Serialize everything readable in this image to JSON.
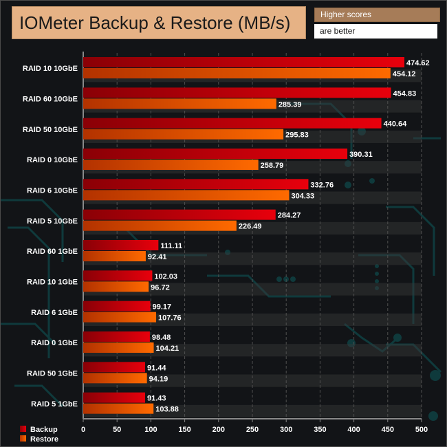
{
  "header": {
    "title": "IOMeter Backup & Restore (MB/s)",
    "note_line1": "Higher scores",
    "note_line2": "are better"
  },
  "chart_data": {
    "type": "bar",
    "orientation": "horizontal",
    "categories": [
      "RAID 10 10GbE",
      "RAID 60 10GbE",
      "RAID 50 10GbE",
      "RAID 0 10GbE",
      "RAID 6 10GbE",
      "RAID 5 10GbE",
      "RAID 60 1GbE",
      "RAID 10 1GbE",
      "RAID 6 1GbE",
      "RAID 0 1GbE",
      "RAID 50 1GbE",
      "RAID 5 1GbE"
    ],
    "series": [
      {
        "name": "Backup",
        "color": "#e8000c",
        "values": [
          474.62,
          454.83,
          440.64,
          390.31,
          332.76,
          284.27,
          111.11,
          102.03,
          99.17,
          98.48,
          91.44,
          91.43
        ]
      },
      {
        "name": "Restore",
        "color": "#ff6a00",
        "values": [
          454.12,
          285.39,
          295.83,
          258.79,
          304.33,
          226.49,
          92.41,
          96.72,
          107.76,
          104.21,
          94.19,
          103.88
        ]
      }
    ],
    "xlim": [
      0,
      500
    ],
    "xticks": [
      0,
      50,
      100,
      150,
      200,
      250,
      300,
      350,
      400,
      450,
      500
    ],
    "legend_position": "bottom-left",
    "data_labels": true
  }
}
